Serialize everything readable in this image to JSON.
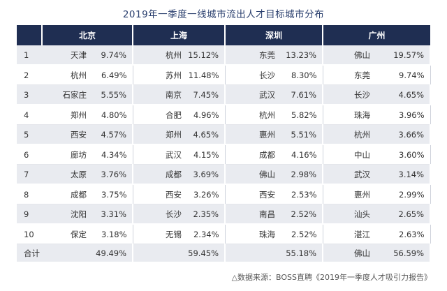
{
  "title": "2019年一季度一线城市流出人才目标城市分布",
  "headers": [
    "北京",
    "上海",
    "深圳",
    "广州"
  ],
  "rows": [
    {
      "rank": "1",
      "cells": [
        [
          "天津",
          "9.74%"
        ],
        [
          "杭州",
          "15.12%"
        ],
        [
          "东莞",
          "13.23%"
        ],
        [
          "佛山",
          "19.57%"
        ]
      ]
    },
    {
      "rank": "2",
      "cells": [
        [
          "杭州",
          "6.49%"
        ],
        [
          "苏州",
          "11.48%"
        ],
        [
          "长沙",
          "8.30%"
        ],
        [
          "东莞",
          "9.74%"
        ]
      ]
    },
    {
      "rank": "3",
      "cells": [
        [
          "石家庄",
          "5.55%"
        ],
        [
          "南京",
          "7.45%"
        ],
        [
          "武汉",
          "7.61%"
        ],
        [
          "长沙",
          "4.65%"
        ]
      ]
    },
    {
      "rank": "4",
      "cells": [
        [
          "郑州",
          "4.80%"
        ],
        [
          "合肥",
          "4.96%"
        ],
        [
          "杭州",
          "5.82%"
        ],
        [
          "珠海",
          "3.96%"
        ]
      ]
    },
    {
      "rank": "5",
      "cells": [
        [
          "西安",
          "4.57%"
        ],
        [
          "郑州",
          "4.65%"
        ],
        [
          "惠州",
          "5.51%"
        ],
        [
          "杭州",
          "3.66%"
        ]
      ]
    },
    {
      "rank": "6",
      "cells": [
        [
          "廊坊",
          "4.34%"
        ],
        [
          "武汉",
          "4.15%"
        ],
        [
          "成都",
          "4.16%"
        ],
        [
          "中山",
          "3.60%"
        ]
      ]
    },
    {
      "rank": "7",
      "cells": [
        [
          "太原",
          "3.76%"
        ],
        [
          "成都",
          "3.69%"
        ],
        [
          "佛山",
          "2.98%"
        ],
        [
          "武汉",
          "3.14%"
        ]
      ]
    },
    {
      "rank": "8",
      "cells": [
        [
          "成都",
          "3.75%"
        ],
        [
          "西安",
          "3.26%"
        ],
        [
          "西安",
          "2.53%"
        ],
        [
          "惠州",
          "2.99%"
        ]
      ]
    },
    {
      "rank": "9",
      "cells": [
        [
          "沈阳",
          "3.31%"
        ],
        [
          "长沙",
          "2.35%"
        ],
        [
          "南昌",
          "2.52%"
        ],
        [
          "汕头",
          "2.65%"
        ]
      ]
    },
    {
      "rank": "10",
      "cells": [
        [
          "保定",
          "3.18%"
        ],
        [
          "无锡",
          "2.34%"
        ],
        [
          "珠海",
          "2.52%"
        ],
        [
          "湛江",
          "2.63%"
        ]
      ]
    }
  ],
  "total": {
    "label": "合计",
    "cells": [
      [
        "",
        "49.49%"
      ],
      [
        "",
        "59.45%"
      ],
      [
        "",
        "55.18%"
      ],
      [
        "佛山",
        "56.59%"
      ]
    ]
  },
  "source": "△数据来源：BOSS直聘《2019年一季度人才吸引力报告》"
}
